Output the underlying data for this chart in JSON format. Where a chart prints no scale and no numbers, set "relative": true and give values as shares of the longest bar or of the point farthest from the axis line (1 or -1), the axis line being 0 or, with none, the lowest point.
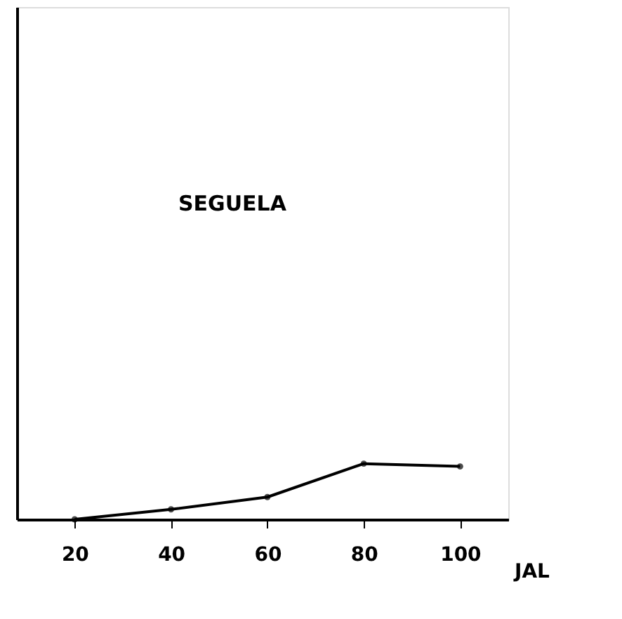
{
  "chart_data": {
    "type": "line",
    "title": "SEGUELA",
    "xlabel": "JAL",
    "relative": true,
    "x": [
      20,
      40,
      60,
      80,
      100
    ],
    "series": [
      {
        "color": "#000000",
        "values": [
          0,
          0.18,
          0.4,
          1,
          0.95
        ]
      }
    ],
    "xlim": [
      8,
      110
    ],
    "xticks": [
      20,
      40,
      60,
      80,
      100
    ],
    "marker": "circle",
    "line_style": "solid",
    "grid": false
  }
}
